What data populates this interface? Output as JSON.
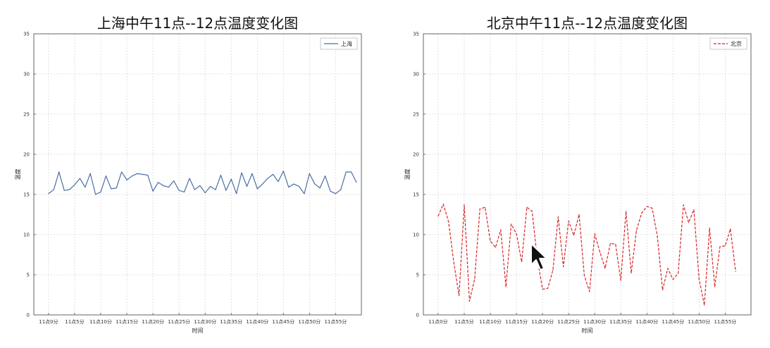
{
  "chart_data": [
    {
      "type": "line",
      "title": "上海中午11点--12点温度变化图",
      "xlabel": "时间",
      "ylabel": "温度",
      "xlim": [
        0,
        59
      ],
      "ylim": [
        0,
        35
      ],
      "yticks": [
        0,
        5,
        10,
        15,
        20,
        25,
        30,
        35
      ],
      "xtick_positions": [
        0,
        5,
        10,
        15,
        20,
        25,
        30,
        35,
        40,
        45,
        50,
        55
      ],
      "xtick_labels": [
        "11点0分",
        "11点5分",
        "11点10分",
        "11点15分",
        "11点20分",
        "11点25分",
        "11点30分",
        "11点35分",
        "11点40分",
        "11点45分",
        "11点50分",
        "11点55分"
      ],
      "grid": true,
      "legend_position": "top-right",
      "series": [
        {
          "name": "上海",
          "color": "#4a6fa5",
          "dash": "solid",
          "values": [
            15.1,
            15.6,
            17.8,
            15.5,
            15.6,
            16.2,
            17.0,
            15.9,
            17.6,
            15.0,
            15.3,
            17.3,
            15.7,
            15.8,
            17.8,
            16.8,
            17.3,
            17.6,
            17.5,
            17.4,
            15.4,
            16.5,
            16.1,
            15.9,
            16.7,
            15.5,
            15.3,
            17.0,
            15.6,
            16.1,
            15.2,
            16.0,
            15.6,
            17.4,
            15.5,
            16.9,
            15.1,
            17.7,
            16.0,
            17.6,
            15.7,
            16.3,
            17.0,
            17.5,
            16.6,
            17.9,
            15.9,
            16.3,
            16.0,
            15.1,
            17.6,
            16.3,
            15.8,
            17.3,
            15.4,
            15.1,
            15.6,
            17.8,
            17.8,
            16.5
          ]
        }
      ]
    },
    {
      "type": "line",
      "title": "北京中午11点--12点温度变化图",
      "xlabel": "时间",
      "ylabel": "温度",
      "xlim": [
        0,
        59
      ],
      "ylim": [
        0,
        35
      ],
      "yticks": [
        0,
        5,
        10,
        15,
        20,
        25,
        30,
        35
      ],
      "xtick_positions": [
        0,
        5,
        10,
        15,
        20,
        25,
        30,
        35,
        40,
        45,
        50,
        55
      ],
      "xtick_labels": [
        "11点0分",
        "11点5分",
        "11点10分",
        "11点15分",
        "11点20分",
        "11点25分",
        "11点30分",
        "11点35分",
        "11点40分",
        "11点45分",
        "11点50分",
        "11点55分"
      ],
      "grid": true,
      "legend_position": "top-right",
      "series": [
        {
          "name": "北京",
          "color": "#d62728",
          "dash": "dashed",
          "values": [
            12.3,
            13.8,
            11.6,
            6.5,
            2.4,
            13.7,
            1.7,
            4.5,
            13.2,
            13.4,
            9.2,
            8.4,
            10.6,
            3.5,
            11.3,
            10.1,
            6.6,
            13.4,
            12.9,
            7.0,
            3.2,
            3.3,
            5.6,
            12.2,
            6.0,
            11.7,
            9.9,
            12.5,
            4.9,
            2.9,
            10.1,
            7.8,
            5.8,
            8.9,
            8.8,
            4.3,
            12.9,
            5.2,
            10.5,
            12.7,
            13.5,
            13.3,
            9.8,
            3.1,
            5.8,
            4.4,
            5.2,
            13.7,
            11.5,
            13.1,
            4.5,
            1.2,
            10.8,
            3.5,
            8.5,
            8.6,
            10.7,
            5.4
          ]
        }
      ]
    }
  ]
}
